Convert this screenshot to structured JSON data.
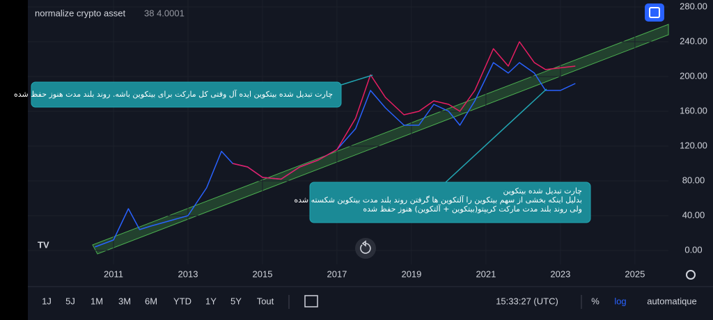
{
  "chart_data": {
    "type": "line",
    "title": "normalize crypto asset",
    "subtitle": "38 4.0001",
    "x": [
      2010.5,
      2011.0,
      2011.4,
      2011.7,
      2012.0,
      2012.5,
      2013.0,
      2013.5,
      2013.9,
      2014.2,
      2014.6,
      2015.0,
      2015.5,
      2016.0,
      2016.5,
      2017.0,
      2017.5,
      2017.9,
      2018.3,
      2018.8,
      2019.2,
      2019.6,
      2020.0,
      2020.3,
      2020.7,
      2021.2,
      2021.6,
      2021.9,
      2022.3,
      2022.6,
      2023.0,
      2023.4
    ],
    "series": [
      {
        "color": "#2962ff",
        "values": [
          4,
          12,
          48,
          24,
          28,
          34,
          40,
          72,
          114,
          100,
          96,
          84,
          82,
          96,
          104,
          116,
          140,
          184,
          164,
          144,
          144,
          168,
          160,
          144,
          172,
          216,
          204,
          216,
          204,
          184,
          184,
          192
        ]
      },
      {
        "color": "#e91e63",
        "values": [
          null,
          null,
          null,
          null,
          null,
          null,
          null,
          null,
          null,
          100,
          96,
          84,
          82,
          96,
          104,
          116,
          152,
          202,
          176,
          156,
          160,
          172,
          168,
          160,
          184,
          232,
          212,
          240,
          216,
          208,
          210,
          212
        ]
      }
    ],
    "xlim": [
      2008.7,
      2025.9
    ],
    "xticks": [
      2011,
      2013,
      2015,
      2017,
      2019,
      2021,
      2023,
      2025
    ],
    "ylim": [
      0,
      280
    ],
    "yticks": [
      {
        "value": 0,
        "label": "0.00"
      },
      {
        "value": 40,
        "label": "40.00"
      },
      {
        "value": 80,
        "label": "80.00"
      },
      {
        "value": 120,
        "label": "120.00"
      },
      {
        "value": 160,
        "label": "160.00"
      },
      {
        "value": 200,
        "label": "200.00"
      },
      {
        "value": 240,
        "label": "240.00"
      },
      {
        "value": 280,
        "label": "280.00"
      }
    ],
    "grid": true,
    "annotations": [
      [
        "چارت تبدیل شده بیتکوین ایده آل وقتی کل مارکت برای بیتکوین باشه. روند بلند مدت هنوز حفظ شده"
      ],
      [
        "چارت تبدیل شده بیتکوین",
        "بدلیل اینکه بخشی از سهم بیتکوین را آلتکوین ها گرفتن روند بلند مدت بیتکوین شکسته شده",
        "ولی روند بلند مدت مارکت کریپتو(بیتکوین + آلتکوین) هنوز حفظ شده"
      ]
    ]
  },
  "toolbar": {
    "ranges": [
      "1J",
      "5J",
      "1M",
      "3M",
      "6M",
      "YTD",
      "1Y",
      "5Y",
      "Tout"
    ],
    "time": "15:33:27 (UTC)",
    "percent": "%",
    "log": "log",
    "auto": "automatique"
  }
}
